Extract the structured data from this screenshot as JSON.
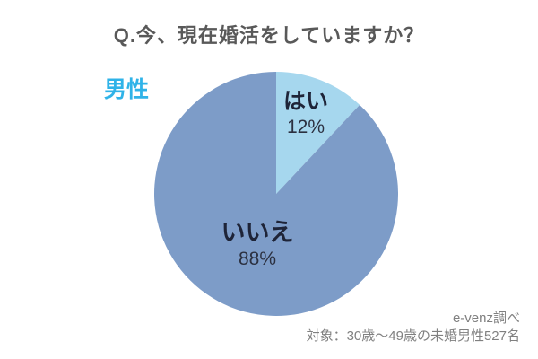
{
  "title": "Q.今、現在婚活をしていますか？",
  "group_label": "男性",
  "source": {
    "line1": "e-venz調べ",
    "line2": "対象：30歳～49歳の未婚男性527名"
  },
  "colors": {
    "title": "#595959",
    "group_label": "#2fb3e8",
    "pie_label": "#1e2438",
    "percent_label": "#2b3040",
    "source_text": "#808080",
    "slice_yes": "#a6d7ee",
    "slice_no": "#7d9cc8"
  },
  "chart_data": {
    "type": "pie",
    "title": "Q.今、現在婚活をしていますか？",
    "categories": [
      "はい",
      "いいえ"
    ],
    "values": [
      12,
      88
    ],
    "labels": [
      {
        "name": "はい",
        "percent": "12%"
      },
      {
        "name": "いいえ",
        "percent": "88%"
      }
    ],
    "slice_colors": [
      "#a6d7ee",
      "#7d9cc8"
    ],
    "start_angle_deg": 0,
    "direction": "clockwise",
    "legend_position": "none",
    "annotations": [
      "男性",
      "e-venz調べ",
      "対象：30歳～49歳の未婚男性527名"
    ]
  }
}
